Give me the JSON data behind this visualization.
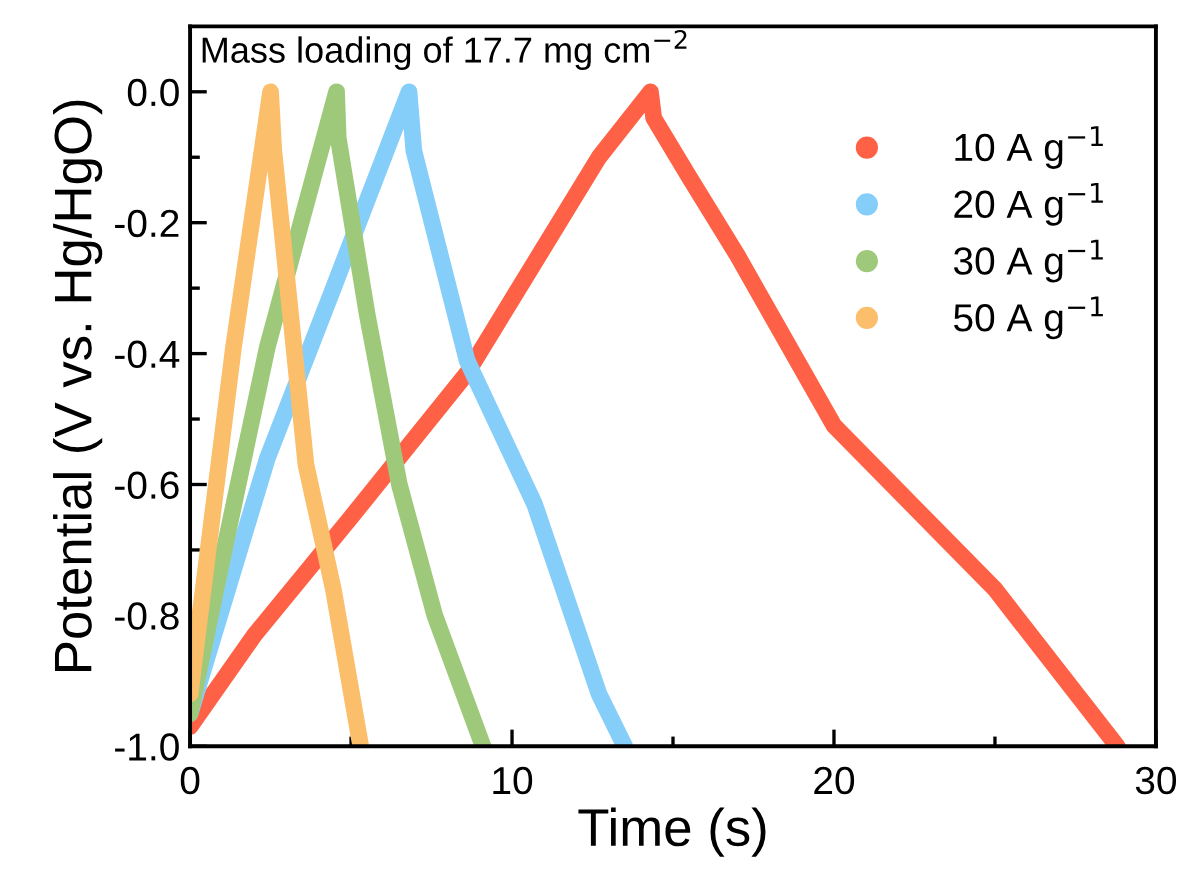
{
  "chart_data": {
    "type": "line",
    "xlabel": "Time (s)",
    "ylabel": "Potential (V vs. Hg/HgO)",
    "annotations": [
      "Mass loading of 17.7 mg cm$^{−2}$"
    ],
    "xlim": [
      0,
      30
    ],
    "ylim": [
      -1.0,
      0.1
    ],
    "xticks": [
      0,
      10,
      20,
      30,
      {
        "value": 5,
        "label": null
      },
      {
        "value": 15,
        "label": null
      },
      {
        "value": 25,
        "label": null
      }
    ],
    "yticks": [
      {
        "value": 0.0,
        "label": "0.0"
      },
      {
        "value": -0.2,
        "label": "-0.2"
      },
      {
        "value": -0.4,
        "label": "-0.4"
      },
      {
        "value": -0.6,
        "label": "-0.6"
      },
      {
        "value": -0.8,
        "label": "-0.8"
      },
      {
        "value": -1.0,
        "label": "-1.0"
      },
      {
        "value": -0.1,
        "label": null
      },
      {
        "value": -0.3,
        "label": null
      },
      {
        "value": -0.5,
        "label": null
      },
      {
        "value": -0.7,
        "label": null
      },
      {
        "value": -0.9,
        "label": null
      }
    ],
    "grid": false,
    "legend": "top right",
    "marker": "none",
    "line_style": "solid",
    "series": [
      {
        "name": "10 A g$^{−1}$",
        "color": "#fe6145",
        "x": [
          0,
          2,
          5,
          8.6,
          12.7,
          14.3,
          14.4,
          15.5,
          17,
          20,
          25,
          28.8
        ],
        "values": [
          -0.97,
          -0.83,
          -0.65,
          -0.43,
          -0.1,
          0.0,
          -0.04,
          -0.13,
          -0.25,
          -0.51,
          -0.76,
          -1.0
        ]
      },
      {
        "name": "20 A g$^{−1}$",
        "color": "#86cefa",
        "x": [
          0,
          2.4,
          4.45,
          6.8,
          6.95,
          8.6,
          10.7,
          12.7,
          13.5
        ],
        "values": [
          -0.95,
          -0.56,
          -0.3,
          0.0,
          -0.09,
          -0.41,
          -0.63,
          -0.92,
          -1.0
        ]
      },
      {
        "name": "30 A g$^{−1}$",
        "color": "#9fc97a",
        "x": [
          0,
          0.93,
          2.4,
          4.55,
          4.6,
          5.5,
          6.5,
          7.6,
          9.1
        ],
        "values": [
          -0.95,
          -0.73,
          -0.39,
          0.0,
          -0.07,
          -0.34,
          -0.6,
          -0.8,
          -1.0
        ]
      },
      {
        "name": "50 A g$^{−1}$",
        "color": "#fbbe6a",
        "x": [
          0,
          1.35,
          2.5,
          2.6,
          3.6,
          4.45,
          5.3
        ],
        "values": [
          -0.92,
          -0.39,
          0.0,
          -0.09,
          -0.57,
          -0.76,
          -1.0
        ]
      }
    ]
  }
}
